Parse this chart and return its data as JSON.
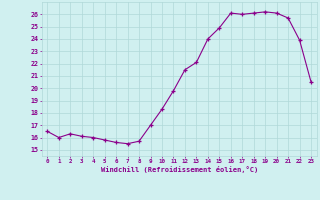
{
  "x": [
    0,
    1,
    2,
    3,
    4,
    5,
    6,
    7,
    8,
    9,
    10,
    11,
    12,
    13,
    14,
    15,
    16,
    17,
    18,
    19,
    20,
    21,
    22,
    23
  ],
  "y": [
    16.5,
    16.0,
    16.3,
    16.1,
    16.0,
    15.8,
    15.6,
    15.5,
    15.7,
    17.0,
    18.3,
    19.8,
    21.5,
    22.1,
    24.0,
    24.9,
    26.1,
    26.0,
    26.1,
    26.2,
    26.1,
    25.7,
    23.9,
    20.5
  ],
  "line_color": "#8B008B",
  "marker_color": "#8B008B",
  "bg_color": "#d0f0f0",
  "grid_color": "#b0d8d8",
  "tick_label_color": "#8B008B",
  "xlabel": "Windchill (Refroidissement éolien,°C)",
  "ylabel_ticks": [
    15,
    16,
    17,
    18,
    19,
    20,
    21,
    22,
    23,
    24,
    25,
    26
  ],
  "xlim": [
    -0.5,
    23.5
  ],
  "ylim": [
    14.5,
    27.0
  ],
  "xlabel_color": "#8B008B",
  "font_family": "monospace"
}
